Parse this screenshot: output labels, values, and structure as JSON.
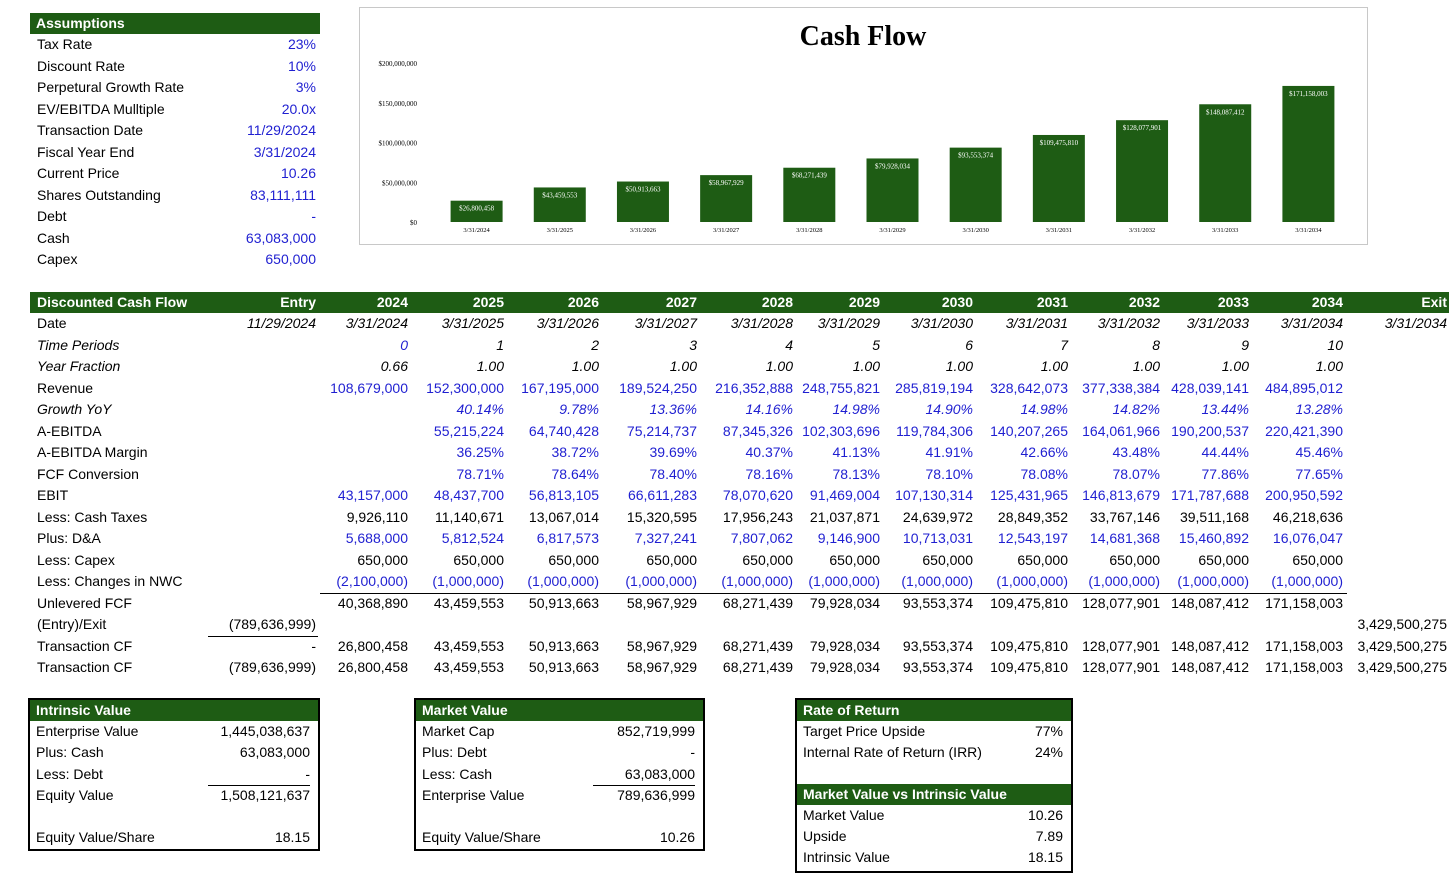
{
  "assumptions": {
    "title": "Assumptions",
    "rows": [
      {
        "label": "Tax Rate",
        "value": "23%"
      },
      {
        "label": "Discount Rate",
        "value": "10%"
      },
      {
        "label": "Perpetural Growth Rate",
        "value": "3%"
      },
      {
        "label": "EV/EBITDA Mulltiple",
        "value": "20.0x"
      },
      {
        "label": "Transaction Date",
        "value": "11/29/2024"
      },
      {
        "label": "Fiscal Year End",
        "value": "3/31/2024"
      },
      {
        "label": "Current Price",
        "value": "10.26"
      },
      {
        "label": "Shares Outstanding",
        "value": "83,111,111"
      },
      {
        "label": "Debt",
        "value": "-"
      },
      {
        "label": "Cash",
        "value": "63,083,000"
      },
      {
        "label": "Capex",
        "value": "650,000"
      }
    ]
  },
  "chart_data": {
    "type": "bar",
    "title": "Cash Flow",
    "categories": [
      "3/31/2024",
      "3/31/2025",
      "3/31/2026",
      "3/31/2027",
      "3/31/2028",
      "3/31/2029",
      "3/31/2030",
      "3/31/2031",
      "3/31/2032",
      "3/31/2033",
      "3/31/2034"
    ],
    "values": [
      26800458,
      43459553,
      50913663,
      58967929,
      68271439,
      79928034,
      93553374,
      109475810,
      128077901,
      148087412,
      171158003
    ],
    "data_labels": [
      "$26,800,458",
      "$43,459,553",
      "$50,913,663",
      "$58,967,929",
      "$68,271,439",
      "$79,928,034",
      "$93,553,374",
      "$109,475,810",
      "$128,077,901",
      "$148,087,412",
      "$171,158,003"
    ],
    "yticks": [
      0,
      50000000,
      100000000,
      150000000,
      200000000
    ],
    "ytick_labels": [
      "$0",
      "$50,000,000",
      "$100,000,000",
      "$150,000,000",
      "$200,000,000"
    ],
    "ylim": [
      0,
      200000000
    ],
    "bar_color": "#1e5c14",
    "grid": false,
    "legend": "none"
  },
  "dcf": {
    "title": "Discounted Cash Flow",
    "columns": [
      "Entry",
      "2024",
      "2025",
      "2026",
      "2027",
      "2028",
      "2029",
      "2030",
      "2031",
      "2032",
      "2033",
      "2034",
      "Exit"
    ],
    "rows": [
      {
        "label": "Date",
        "style": "ital",
        "cells": [
          "11/29/2024",
          "3/31/2024",
          "3/31/2025",
          "3/31/2026",
          "3/31/2027",
          "3/31/2028",
          "3/31/2029",
          "3/31/2030",
          "3/31/2031",
          "3/31/2032",
          "3/31/2033",
          "3/31/2034",
          "3/31/2034"
        ]
      },
      {
        "label": "Time Periods",
        "style": "ital",
        "labelItal": true,
        "cells": [
          "",
          "0",
          "1",
          "2",
          "3",
          "4",
          "5",
          "6",
          "7",
          "8",
          "9",
          "10",
          ""
        ],
        "blueIdx": [
          1
        ]
      },
      {
        "label": "Year Fraction",
        "style": "ital",
        "labelItal": true,
        "cells": [
          "",
          "0.66",
          "1.00",
          "1.00",
          "1.00",
          "1.00",
          "1.00",
          "1.00",
          "1.00",
          "1.00",
          "1.00",
          "1.00",
          ""
        ]
      },
      {
        "label": "Revenue",
        "style": "blue",
        "cells": [
          "",
          "108,679,000",
          "152,300,000",
          "167,195,000",
          "189,524,250",
          "216,352,888",
          "248,755,821",
          "285,819,194",
          "328,642,073",
          "377,338,384",
          "428,039,141",
          "484,895,012",
          ""
        ]
      },
      {
        "label": "Growth YoY",
        "style": "blue ital",
        "labelItal": true,
        "cells": [
          "",
          "",
          "40.14%",
          "9.78%",
          "13.36%",
          "14.16%",
          "14.98%",
          "14.90%",
          "14.98%",
          "14.82%",
          "13.44%",
          "13.28%",
          ""
        ]
      },
      {
        "label": "A-EBITDA",
        "style": "blue",
        "cells": [
          "",
          "",
          "55,215,224",
          "64,740,428",
          "75,214,737",
          "87,345,326",
          "102,303,696",
          "119,784,306",
          "140,207,265",
          "164,061,966",
          "190,200,537",
          "220,421,390",
          ""
        ]
      },
      {
        "label": "A-EBITDA Margin",
        "style": "blue",
        "cells": [
          "",
          "",
          "36.25%",
          "38.72%",
          "39.69%",
          "40.37%",
          "41.13%",
          "41.91%",
          "42.66%",
          "43.48%",
          "44.44%",
          "45.46%",
          ""
        ]
      },
      {
        "label": "FCF Conversion",
        "style": "blue",
        "cells": [
          "",
          "",
          "78.71%",
          "78.64%",
          "78.40%",
          "78.16%",
          "78.13%",
          "78.10%",
          "78.08%",
          "78.07%",
          "77.86%",
          "77.65%",
          ""
        ]
      },
      {
        "label": "EBIT",
        "style": "blue",
        "cells": [
          "",
          "43,157,000",
          "48,437,700",
          "56,813,105",
          "66,611,283",
          "78,070,620",
          "91,469,004",
          "107,130,314",
          "125,431,965",
          "146,813,679",
          "171,787,688",
          "200,950,592",
          ""
        ]
      },
      {
        "label": "Less: Cash Taxes",
        "style": "",
        "cells": [
          "",
          "9,926,110",
          "11,140,671",
          "13,067,014",
          "15,320,595",
          "17,956,243",
          "21,037,871",
          "24,639,972",
          "28,849,352",
          "33,767,146",
          "39,511,168",
          "46,218,636",
          ""
        ]
      },
      {
        "label": "Plus: D&A",
        "style": "blue",
        "cells": [
          "",
          "5,688,000",
          "5,812,524",
          "6,817,573",
          "7,327,241",
          "7,807,062",
          "9,146,900",
          "10,713,031",
          "12,543,197",
          "14,681,368",
          "15,460,892",
          "16,076,047",
          ""
        ]
      },
      {
        "label": "Less: Capex",
        "style": "",
        "cells": [
          "",
          "650,000",
          "650,000",
          "650,000",
          "650,000",
          "650,000",
          "650,000",
          "650,000",
          "650,000",
          "650,000",
          "650,000",
          "650,000",
          ""
        ]
      },
      {
        "label": "Less: Changes in NWC",
        "style": "blue",
        "cells": [
          "",
          "(2,100,000)",
          "(1,000,000)",
          "(1,000,000)",
          "(1,000,000)",
          "(1,000,000)",
          "(1,000,000)",
          "(1,000,000)",
          "(1,000,000)",
          "(1,000,000)",
          "(1,000,000)",
          "(1,000,000)",
          ""
        ]
      },
      {
        "label": "Unlevered FCF",
        "style": "",
        "cells": [
          "",
          "40,368,890",
          "43,459,553",
          "50,913,663",
          "58,967,929",
          "68,271,439",
          "79,928,034",
          "93,553,374",
          "109,475,810",
          "128,077,901",
          "148,087,412",
          "171,158,003",
          ""
        ]
      },
      {
        "label": "(Entry)/Exit",
        "style": "",
        "cells": [
          "(789,636,999)",
          "",
          "",
          "",
          "",
          "",
          "",
          "",
          "",
          "",
          "",
          "",
          "3,429,500,275"
        ]
      },
      {
        "label": "Transaction CF",
        "style": "",
        "cells": [
          "-",
          "26,800,458",
          "43,459,553",
          "50,913,663",
          "58,967,929",
          "68,271,439",
          "79,928,034",
          "93,553,374",
          "109,475,810",
          "128,077,901",
          "148,087,412",
          "171,158,003",
          "3,429,500,275"
        ]
      },
      {
        "label": "Transaction CF",
        "style": "",
        "cells": [
          "(789,636,999)",
          "26,800,458",
          "43,459,553",
          "50,913,663",
          "58,967,929",
          "68,271,439",
          "79,928,034",
          "93,553,374",
          "109,475,810",
          "128,077,901",
          "148,087,412",
          "171,158,003",
          "3,429,500,275"
        ]
      }
    ]
  },
  "intrinsic": {
    "title": "Intrinsic Value",
    "rows": [
      {
        "label": "Enterprise Value",
        "value": "1,445,038,637"
      },
      {
        "label": "Plus: Cash",
        "value": "63,083,000"
      },
      {
        "label": "Less: Debt",
        "value": "-"
      },
      {
        "label": "Equity Value",
        "value": "1,508,121,637"
      },
      {
        "label": "",
        "value": ""
      },
      {
        "label": "Equity Value/Share",
        "value": "18.15"
      }
    ]
  },
  "market": {
    "title": "Market Value",
    "rows": [
      {
        "label": "Market Cap",
        "value": "852,719,999"
      },
      {
        "label": "Plus: Debt",
        "value": "-"
      },
      {
        "label": "Less: Cash",
        "value": "63,083,000"
      },
      {
        "label": "Enterprise Value",
        "value": "789,636,999"
      },
      {
        "label": "",
        "value": ""
      },
      {
        "label": "Equity Value/Share",
        "value": "10.26"
      }
    ]
  },
  "ror": {
    "title": "Rate of Return",
    "rows": [
      {
        "label": "Target Price Upside",
        "value": "77%"
      },
      {
        "label": "Internal Rate of Return (IRR)",
        "value": "24%"
      }
    ],
    "title2": "Market Value vs Intrinsic Value",
    "rows2": [
      {
        "label": "Market Value",
        "value": "10.26"
      },
      {
        "label": "Upside",
        "value": "7.89"
      },
      {
        "label": "Intrinsic Value",
        "value": "18.15"
      }
    ]
  }
}
